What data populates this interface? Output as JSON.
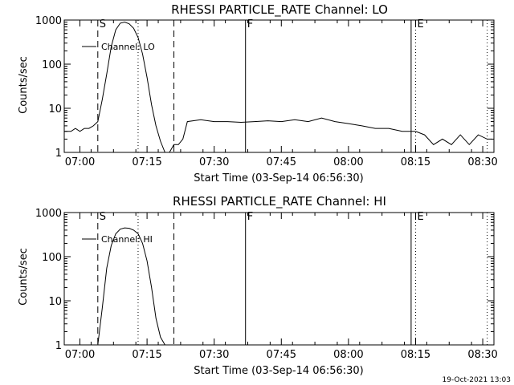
{
  "footer_timestamp": "19-Oct-2021 13:03",
  "chart_data": [
    {
      "type": "line",
      "title": "RHESSI PARTICLE_RATE Channel: LO",
      "xlabel": "Start Time (03-Sep-14 06:56:30)",
      "ylabel": "Counts/sec",
      "y_scale": "log",
      "ylim": [
        1,
        1000
      ],
      "y_tick_labels": [
        "1",
        "10",
        "100",
        "1000"
      ],
      "x_range_minutes_after_start": [
        0,
        96
      ],
      "x_tick_labels": [
        "07:00",
        "07:15",
        "07:30",
        "07:45",
        "08:00",
        "08:15",
        "08:30"
      ],
      "legend": "Channel: LO",
      "markers": [
        {
          "label": "S",
          "time": "07:04",
          "style": "dashed"
        },
        {
          "label": "",
          "time": "07:13",
          "style": "dotted"
        },
        {
          "label": "",
          "time": "07:21",
          "style": "dashed"
        },
        {
          "label": "F",
          "time": "07:37",
          "style": "solid"
        },
        {
          "label": "",
          "time": "08:14",
          "style": "solid"
        },
        {
          "label": "E",
          "time": "08:15",
          "style": "dotted"
        },
        {
          "label": "",
          "time": "08:31",
          "style": "dotted"
        }
      ],
      "series": [
        {
          "name": "Channel: LO",
          "x_time": [
            "06:56:30",
            "06:58",
            "06:59",
            "07:00",
            "07:01",
            "07:02",
            "07:03",
            "07:04",
            "07:05",
            "07:06",
            "07:07",
            "07:08",
            "07:09",
            "07:10",
            "07:11",
            "07:12",
            "07:13",
            "07:14",
            "07:15",
            "07:16",
            "07:17",
            "07:18",
            "07:19",
            "07:20",
            "07:21",
            "07:22",
            "07:23",
            "07:24",
            "07:27",
            "07:30",
            "07:33",
            "07:36",
            "07:39",
            "07:42",
            "07:45",
            "07:48",
            "07:51",
            "07:54",
            "07:57",
            "08:00",
            "08:03",
            "08:06",
            "08:09",
            "08:12",
            "08:15",
            "08:17",
            "08:19",
            "08:21",
            "08:23",
            "08:25",
            "08:27",
            "08:29",
            "08:31",
            "08:32"
          ],
          "values": [
            3,
            3,
            3.5,
            3,
            3.5,
            3.5,
            4,
            5,
            16,
            60,
            250,
            600,
            850,
            900,
            820,
            650,
            400,
            170,
            50,
            12,
            4,
            1.8,
            1,
            1,
            1.5,
            1.5,
            2,
            5,
            5.5,
            5,
            5,
            4.8,
            5,
            5.2,
            5,
            5.5,
            5,
            6,
            5,
            4.5,
            4,
            3.5,
            3.5,
            3,
            3,
            2.5,
            1.5,
            2,
            1.5,
            2.5,
            1.5,
            2.5,
            2,
            2
          ]
        }
      ]
    },
    {
      "type": "line",
      "title": "RHESSI PARTICLE_RATE Channel: HI",
      "xlabel": "Start Time (03-Sep-14 06:56:30)",
      "ylabel": "Counts/sec",
      "y_scale": "log",
      "ylim": [
        1,
        1000
      ],
      "y_tick_labels": [
        "1",
        "10",
        "100",
        "1000"
      ],
      "x_range_minutes_after_start": [
        0,
        96
      ],
      "x_tick_labels": [
        "07:00",
        "07:15",
        "07:30",
        "07:45",
        "08:00",
        "08:15",
        "08:30"
      ],
      "legend": "Channel: HI",
      "markers": [
        {
          "label": "S",
          "time": "07:04",
          "style": "dashed"
        },
        {
          "label": "",
          "time": "07:13",
          "style": "dotted"
        },
        {
          "label": "",
          "time": "07:21",
          "style": "dashed"
        },
        {
          "label": "F",
          "time": "07:37",
          "style": "solid"
        },
        {
          "label": "",
          "time": "08:14",
          "style": "solid"
        },
        {
          "label": "E",
          "time": "08:15",
          "style": "dotted"
        },
        {
          "label": "",
          "time": "08:31",
          "style": "dotted"
        }
      ],
      "series": [
        {
          "name": "Channel: HI",
          "x_time": [
            "07:04",
            "07:05",
            "07:06",
            "07:07",
            "07:08",
            "07:09",
            "07:10",
            "07:11",
            "07:12",
            "07:13",
            "07:14",
            "07:15",
            "07:16",
            "07:17",
            "07:18",
            "07:19",
            "07:20"
          ],
          "values": [
            1,
            7,
            55,
            180,
            330,
            420,
            450,
            440,
            400,
            330,
            200,
            80,
            20,
            4,
            1.5,
            1,
            1
          ]
        }
      ]
    }
  ]
}
